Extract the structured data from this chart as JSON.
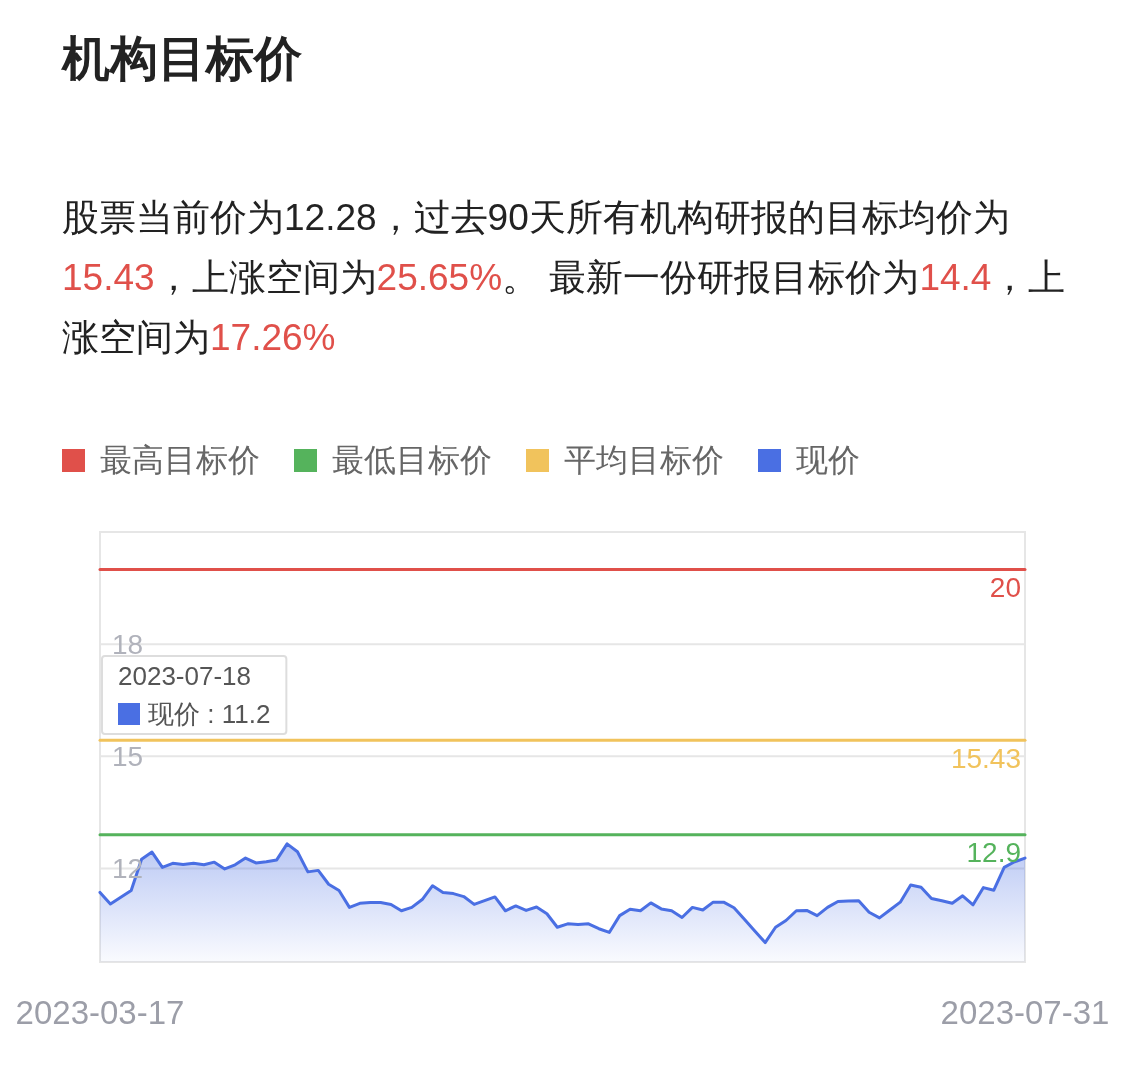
{
  "chart_data": {
    "type": "line",
    "title": "机构目标价",
    "subtitle": "股票当前价为12.28，过去90天所有机构研报的目标均价为15.43，上涨空间为25.65%。 最新一份研报目标价为14.4，上涨空间为17.26%",
    "categories": [
      "2023-03-17",
      null,
      null,
      null,
      null,
      null,
      null,
      null,
      null,
      null,
      null,
      null,
      null,
      null,
      null,
      null,
      null,
      null,
      null,
      null,
      null,
      null,
      null,
      null,
      null,
      null,
      null,
      null,
      null,
      null,
      null,
      null,
      null,
      null,
      null,
      null,
      null,
      null,
      null,
      null,
      null,
      null,
      null,
      null,
      null,
      null,
      null,
      null,
      null,
      null,
      null,
      null,
      null,
      null,
      null,
      null,
      null,
      null,
      null,
      null,
      null,
      null,
      null,
      null,
      null,
      null,
      null,
      null,
      null,
      null,
      null,
      null,
      null,
      null,
      null,
      null,
      null,
      null,
      null,
      null,
      null,
      null,
      null,
      null,
      null,
      null,
      null,
      null,
      null,
      "2023-07-31"
    ],
    "series": [
      {
        "name": "最高目标价",
        "color": "#e0504a",
        "values": [
          20,
          20,
          20,
          20,
          20,
          20,
          20,
          20,
          20,
          20,
          20,
          20,
          20,
          20,
          20,
          20,
          20,
          20,
          20,
          20,
          20,
          20,
          20,
          20,
          20,
          20,
          20,
          20,
          20,
          20,
          20,
          20,
          20,
          20,
          20,
          20,
          20,
          20,
          20,
          20,
          20,
          20,
          20,
          20,
          20,
          20,
          20,
          20,
          20,
          20,
          20,
          20,
          20,
          20,
          20,
          20,
          20,
          20,
          20,
          20,
          20,
          20,
          20,
          20,
          20,
          20,
          20,
          20,
          20,
          20,
          20,
          20,
          20,
          20,
          20,
          20,
          20,
          20,
          20,
          20,
          20,
          20,
          20,
          20,
          20,
          20,
          20,
          20,
          20,
          20
        ],
        "value_labels": [
          null,
          null,
          null,
          null,
          null,
          null,
          null,
          null,
          null,
          null,
          null,
          null,
          null,
          null,
          null,
          null,
          null,
          null,
          null,
          null,
          null,
          null,
          null,
          null,
          null,
          null,
          null,
          null,
          null,
          null,
          null,
          null,
          null,
          null,
          null,
          null,
          null,
          null,
          null,
          null,
          null,
          null,
          null,
          null,
          null,
          null,
          null,
          null,
          null,
          null,
          null,
          null,
          null,
          null,
          null,
          null,
          null,
          null,
          null,
          null,
          null,
          null,
          null,
          null,
          null,
          null,
          null,
          null,
          null,
          null,
          null,
          null,
          null,
          null,
          null,
          null,
          null,
          null,
          null,
          null,
          null,
          null,
          null,
          null,
          null,
          null,
          null,
          null,
          null,
          "20"
        ]
      },
      {
        "name": "最低目标价",
        "color": "#55b35c",
        "values": [
          12.9,
          12.9,
          12.9,
          12.9,
          12.9,
          12.9,
          12.9,
          12.9,
          12.9,
          12.9,
          12.9,
          12.9,
          12.9,
          12.9,
          12.9,
          12.9,
          12.9,
          12.9,
          12.9,
          12.9,
          12.9,
          12.9,
          12.9,
          12.9,
          12.9,
          12.9,
          12.9,
          12.9,
          12.9,
          12.9,
          12.9,
          12.9,
          12.9,
          12.9,
          12.9,
          12.9,
          12.9,
          12.9,
          12.9,
          12.9,
          12.9,
          12.9,
          12.9,
          12.9,
          12.9,
          12.9,
          12.9,
          12.9,
          12.9,
          12.9,
          12.9,
          12.9,
          12.9,
          12.9,
          12.9,
          12.9,
          12.9,
          12.9,
          12.9,
          12.9,
          12.9,
          12.9,
          12.9,
          12.9,
          12.9,
          12.9,
          12.9,
          12.9,
          12.9,
          12.9,
          12.9,
          12.9,
          12.9,
          12.9,
          12.9,
          12.9,
          12.9,
          12.9,
          12.9,
          12.9,
          12.9,
          12.9,
          12.9,
          12.9,
          12.9,
          12.9,
          12.9,
          12.9,
          12.9,
          12.9
        ],
        "value_labels": [
          null,
          null,
          null,
          null,
          null,
          null,
          null,
          null,
          null,
          null,
          null,
          null,
          null,
          null,
          null,
          null,
          null,
          null,
          null,
          null,
          null,
          null,
          null,
          null,
          null,
          null,
          null,
          null,
          null,
          null,
          null,
          null,
          null,
          null,
          null,
          null,
          null,
          null,
          null,
          null,
          null,
          null,
          null,
          null,
          null,
          null,
          null,
          null,
          null,
          null,
          null,
          null,
          null,
          null,
          null,
          null,
          null,
          null,
          null,
          null,
          null,
          null,
          null,
          null,
          null,
          null,
          null,
          null,
          null,
          null,
          null,
          null,
          null,
          null,
          null,
          null,
          null,
          null,
          null,
          null,
          null,
          null,
          null,
          null,
          null,
          null,
          null,
          null,
          null,
          "12.9"
        ]
      },
      {
        "name": "平均目标价",
        "color": "#f1c35c",
        "values": [
          15.43,
          15.43,
          15.43,
          15.43,
          15.43,
          15.43,
          15.43,
          15.43,
          15.43,
          15.43,
          15.43,
          15.43,
          15.43,
          15.43,
          15.43,
          15.43,
          15.43,
          15.43,
          15.43,
          15.43,
          15.43,
          15.43,
          15.43,
          15.43,
          15.43,
          15.43,
          15.43,
          15.43,
          15.43,
          15.43,
          15.43,
          15.43,
          15.43,
          15.43,
          15.43,
          15.43,
          15.43,
          15.43,
          15.43,
          15.43,
          15.43,
          15.43,
          15.43,
          15.43,
          15.43,
          15.43,
          15.43,
          15.43,
          15.43,
          15.43,
          15.43,
          15.43,
          15.43,
          15.43,
          15.43,
          15.43,
          15.43,
          15.43,
          15.43,
          15.43,
          15.43,
          15.43,
          15.43,
          15.43,
          15.43,
          15.43,
          15.43,
          15.43,
          15.43,
          15.43,
          15.43,
          15.43,
          15.43,
          15.43,
          15.43,
          15.43,
          15.43,
          15.43,
          15.43,
          15.43,
          15.43,
          15.43,
          15.43,
          15.43,
          15.43,
          15.43,
          15.43,
          15.43,
          15.43,
          15.43
        ],
        "value_labels": [
          null,
          null,
          null,
          null,
          null,
          null,
          null,
          null,
          null,
          null,
          null,
          null,
          null,
          null,
          null,
          null,
          null,
          null,
          null,
          null,
          null,
          null,
          null,
          null,
          null,
          null,
          null,
          null,
          null,
          null,
          null,
          null,
          null,
          null,
          null,
          null,
          null,
          null,
          null,
          null,
          null,
          null,
          null,
          null,
          null,
          null,
          null,
          null,
          null,
          null,
          null,
          null,
          null,
          null,
          null,
          null,
          null,
          null,
          null,
          null,
          null,
          null,
          null,
          null,
          null,
          null,
          null,
          null,
          null,
          null,
          null,
          null,
          null,
          null,
          null,
          null,
          null,
          null,
          null,
          null,
          null,
          null,
          null,
          null,
          null,
          null,
          null,
          null,
          null,
          "15.43"
        ]
      },
      {
        "name": "现价",
        "color": "#4a6fe3",
        "type": "area",
        "values": [
          11.36,
          11.05,
          11.23,
          11.41,
          12.25,
          12.44,
          12.03,
          12.14,
          12.11,
          12.14,
          12.1,
          12.17,
          11.99,
          12.1,
          12.28,
          12.15,
          12.18,
          12.23,
          12.66,
          12.45,
          11.91,
          11.95,
          11.58,
          11.41,
          10.96,
          11.07,
          11.09,
          11.09,
          11.04,
          10.87,
          10.96,
          11.17,
          11.54,
          11.36,
          11.33,
          11.25,
          11.04,
          11.14,
          11.24,
          10.87,
          11.0,
          10.88,
          10.97,
          10.79,
          10.43,
          10.52,
          10.5,
          10.52,
          10.39,
          10.29,
          10.74,
          10.91,
          10.87,
          11.08,
          10.92,
          10.87,
          10.69,
          10.96,
          10.89,
          11.1,
          11.1,
          10.95,
          10.64,
          10.33,
          10.02,
          10.43,
          10.61,
          10.87,
          10.88,
          10.74,
          10.96,
          11.12,
          11.13,
          11.14,
          10.83,
          10.68,
          10.89,
          11.1,
          11.56,
          11.5,
          11.2,
          11.14,
          11.07,
          11.27,
          11.03,
          11.49,
          11.42,
          12.03,
          12.18,
          12.28
        ]
      }
    ],
    "ylim": [
      9.5,
      21
    ],
    "yticks": [
      12,
      15,
      18
    ],
    "grid": "y",
    "legend": "top left",
    "annotations": [
      "2023-07-18",
      "现价 : 11.2"
    ]
  }
}
